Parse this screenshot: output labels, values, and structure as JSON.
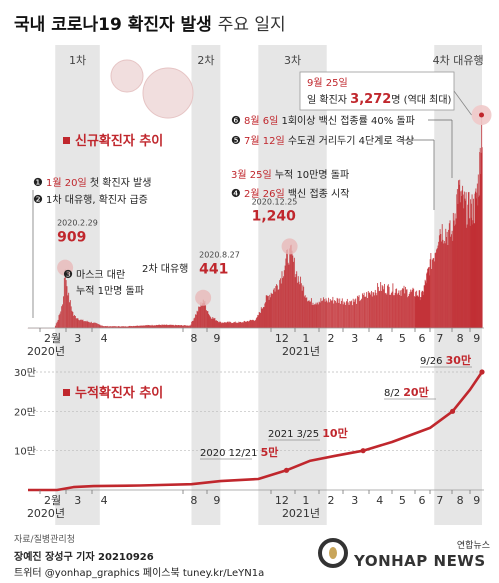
{
  "header": {
    "title": "국내 코로나19 확진자 발생",
    "subtitle": "주요 일지"
  },
  "colors": {
    "accent": "#c0272d",
    "bar": "#c0272d",
    "wave_band": "#e6e6e6",
    "marker": "#222222"
  },
  "chart_data": [
    {
      "type": "bar",
      "title": "신규확진자 추이",
      "x_range": [
        "2020-01-20",
        "2021-09-26"
      ],
      "x_ticks": [
        {
          "label": "2월",
          "month": "2020-02"
        },
        {
          "label": "3",
          "month": "2020-03"
        },
        {
          "label": "4",
          "month": "2020-04"
        },
        {
          "label": "8",
          "month": "2020-08"
        },
        {
          "label": "9",
          "month": "2020-09"
        },
        {
          "label": "12",
          "month": "2020-12"
        },
        {
          "label": "1",
          "month": "2021-01"
        },
        {
          "label": "2",
          "month": "2021-02"
        },
        {
          "label": "3",
          "month": "2021-03"
        },
        {
          "label": "4",
          "month": "2021-04"
        },
        {
          "label": "5",
          "month": "2021-05"
        },
        {
          "label": "6",
          "month": "2021-06"
        },
        {
          "label": "7",
          "month": "2021-07"
        },
        {
          "label": "8",
          "month": "2021-08"
        },
        {
          "label": "9",
          "month": "2021-09"
        }
      ],
      "year_labels": [
        {
          "label": "2020년",
          "date": "2020-02-01"
        },
        {
          "label": "2021년",
          "date": "2021-01-01"
        }
      ],
      "waves": [
        {
          "label": "1차",
          "start": "2020-02-18",
          "end": "2020-04-10"
        },
        {
          "label": "2차",
          "start": "2020-08-12",
          "end": "2020-09-20"
        },
        {
          "label": "3차",
          "start": "2020-11-13",
          "end": "2021-02-10"
        },
        {
          "label": "4차 대유행",
          "start": "2021-07-07",
          "end": "2021-09-26"
        }
      ],
      "daily_keypoints": [
        [
          "2020-01-20",
          1
        ],
        [
          "2020-02-17",
          1
        ],
        [
          "2020-02-22",
          180
        ],
        [
          "2020-02-26",
          400
        ],
        [
          "2020-02-29",
          909
        ],
        [
          "2020-03-04",
          500
        ],
        [
          "2020-03-10",
          200
        ],
        [
          "2020-03-20",
          120
        ],
        [
          "2020-04-01",
          90
        ],
        [
          "2020-04-15",
          30
        ],
        [
          "2020-05-10",
          25
        ],
        [
          "2020-06-01",
          40
        ],
        [
          "2020-07-01",
          50
        ],
        [
          "2020-08-10",
          40
        ],
        [
          "2020-08-15",
          160
        ],
        [
          "2020-08-22",
          330
        ],
        [
          "2020-08-27",
          441
        ],
        [
          "2020-09-05",
          190
        ],
        [
          "2020-09-20",
          90
        ],
        [
          "2020-10-20",
          90
        ],
        [
          "2020-11-10",
          140
        ],
        [
          "2020-11-25",
          480
        ],
        [
          "2020-12-10",
          700
        ],
        [
          "2020-12-25",
          1240
        ],
        [
          "2021-01-05",
          800
        ],
        [
          "2021-01-20",
          420
        ],
        [
          "2021-02-15",
          450
        ],
        [
          "2021-03-15",
          430
        ],
        [
          "2021-04-15",
          650
        ],
        [
          "2021-05-15",
          600
        ],
        [
          "2021-06-15",
          520
        ],
        [
          "2021-07-07",
          1200
        ],
        [
          "2021-07-14",
          1600
        ],
        [
          "2021-08-01",
          1500
        ],
        [
          "2021-08-11",
          2200
        ],
        [
          "2021-08-25",
          1900
        ],
        [
          "2021-09-10",
          1900
        ],
        [
          "2021-09-20",
          2400
        ],
        [
          "2021-09-25",
          3272
        ],
        [
          "2021-09-26",
          2800
        ]
      ],
      "highlights": [
        {
          "date": "2020-02-29",
          "value": 909,
          "date_label": "2020.2.29",
          "value_label": "909"
        },
        {
          "date": "2020-08-27",
          "value": 441,
          "date_label": "2020.8.27",
          "value_label": "441"
        },
        {
          "date": "2020-12-25",
          "value": 1240,
          "date_label": "2020.12.25",
          "value_label": "1,240"
        }
      ],
      "peak": {
        "date": "2021-09-25",
        "value": 3272,
        "date_label": "9월 25일",
        "prefix": "일 확진자 ",
        "value_label": "3,272",
        "suffix": "명 (역대 최대)"
      },
      "events": [
        {
          "num": "❶",
          "date_label": "1월 20일",
          "text": "첫 확진자 발생",
          "date": "2020-01-20"
        },
        {
          "num": "❷",
          "date_label": "",
          "text": "1차 대유행, 확진자 급증",
          "date": "2020-02-20"
        },
        {
          "num": "❸",
          "date_label": "",
          "text": "마스크 대란",
          "text2": "누적 1만명 돌파",
          "date": "2020-04-03"
        },
        {
          "num": "",
          "date_label": "",
          "text": "2차 대유행",
          "date": "2020-08-15"
        },
        {
          "num": "❹",
          "date_label": "2월 26일",
          "text": "백신 접종 시작",
          "date": "2021-02-26"
        },
        {
          "num": "",
          "date_label": "3월 25일",
          "text": "누적 10만명 돌파",
          "date": "2021-03-25"
        },
        {
          "num": "❺",
          "date_label": "7월 12일",
          "text": "수도권 거리두기 4단계로 격상",
          "date": "2021-07-12"
        },
        {
          "num": "❻",
          "date_label": "8월 6일",
          "text": "1회이상 백신 접종률 40% 돌파",
          "date": "2021-08-06"
        }
      ]
    },
    {
      "type": "line",
      "title": "누적확진자 추이",
      "y_ticks": [
        {
          "label": "10만",
          "value": 100000
        },
        {
          "label": "20만",
          "value": 200000
        },
        {
          "label": "30만",
          "value": 300000
        }
      ],
      "ylim": [
        0,
        300000
      ],
      "x_ticks_same_as_above": true,
      "points": [
        [
          "2020-01-20",
          0
        ],
        [
          "2020-02-20",
          100
        ],
        [
          "2020-03-10",
          7500
        ],
        [
          "2020-04-03",
          10000
        ],
        [
          "2020-06-01",
          11500
        ],
        [
          "2020-08-12",
          14700
        ],
        [
          "2020-09-20",
          22700
        ],
        [
          "2020-11-13",
          28000
        ],
        [
          "2020-12-21",
          50000
        ],
        [
          "2021-01-20",
          74000
        ],
        [
          "2021-02-20",
          87000
        ],
        [
          "2021-03-25",
          100000
        ],
        [
          "2021-05-01",
          122000
        ],
        [
          "2021-07-01",
          158000
        ],
        [
          "2021-08-02",
          200000
        ],
        [
          "2021-09-01",
          255000
        ],
        [
          "2021-09-26",
          300000
        ]
      ],
      "annotations": [
        {
          "label_year": "2020",
          "label_date": "12/21",
          "label_value": "5만",
          "date": "2020-12-21",
          "value": 50000
        },
        {
          "label_year": "2021",
          "label_date": "3/25",
          "label_value": "10만",
          "date": "2021-03-25",
          "value": 100000
        },
        {
          "label_year": "",
          "label_date": "8/2",
          "label_value": "20만",
          "date": "2021-08-02",
          "value": 200000
        },
        {
          "label_year": "",
          "label_date": "9/26",
          "label_value": "30만",
          "date": "2021-09-26",
          "value": 300000
        }
      ]
    }
  ],
  "footer": {
    "source": "자료/질병관리청",
    "credit": "장예진 장성구 기자  20210926",
    "social": "트위터 @yonhap_graphics  페이스북 tuney.kr/LeYN1a",
    "logo_small": "연합뉴스",
    "logo_big": "YONHAP NEWS"
  }
}
